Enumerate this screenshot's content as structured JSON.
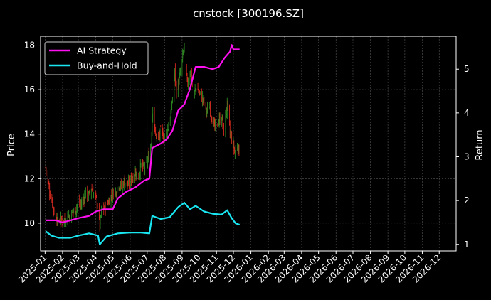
{
  "chart_data": {
    "type": "line",
    "title": "cnstock [300196.SZ]",
    "xlabel": "",
    "ylabel": "Price",
    "y2label": "Return",
    "background": "#000000",
    "grid": true,
    "legend_position": "top-left",
    "x_tick_labels": [
      "2025-01",
      "2025-02",
      "2025-03",
      "2025-04",
      "2025-05",
      "2025-06",
      "2025-07",
      "2025-08",
      "2025-09",
      "2025-10",
      "2025-11",
      "2025-12",
      "2026-01",
      "2026-02",
      "2026-03",
      "2026-04",
      "2026-05",
      "2026-06",
      "2026-07",
      "2026-08",
      "2026-09",
      "2026-10",
      "2026-11",
      "2026-12"
    ],
    "xlim": [
      "2024-12-24",
      "2026-12-31"
    ],
    "ylim": [
      8.75,
      18.4
    ],
    "y_ticks": [
      10,
      12,
      14,
      16,
      18
    ],
    "y2lim": [
      0.85,
      5.75
    ],
    "y2_ticks": [
      1,
      2,
      3,
      4,
      5
    ],
    "candles": {
      "up_color": "#2e8b22",
      "down_color": "#d62a1e",
      "note_series": "daily close, estimated",
      "points": [
        [
          "2025-01-02",
          12.5
        ],
        [
          "2025-01-06",
          11.9
        ],
        [
          "2025-01-09",
          11.4
        ],
        [
          "2025-01-13",
          11.0
        ],
        [
          "2025-01-16",
          10.6
        ],
        [
          "2025-01-21",
          10.3
        ],
        [
          "2025-01-24",
          10.1
        ],
        [
          "2025-02-05",
          10.2
        ],
        [
          "2025-02-10",
          10.4
        ],
        [
          "2025-02-14",
          10.3
        ],
        [
          "2025-02-19",
          10.5
        ],
        [
          "2025-02-24",
          10.6
        ],
        [
          "2025-02-28",
          10.9
        ],
        [
          "2025-03-05",
          10.8
        ],
        [
          "2025-03-10",
          11.1
        ],
        [
          "2025-03-14",
          11.4
        ],
        [
          "2025-03-19",
          11.2
        ],
        [
          "2025-03-24",
          11.6
        ],
        [
          "2025-03-28",
          11.3
        ],
        [
          "2025-04-03",
          11.0
        ],
        [
          "2025-04-08",
          9.9
        ],
        [
          "2025-04-11",
          10.5
        ],
        [
          "2025-04-16",
          10.7
        ],
        [
          "2025-04-22",
          10.9
        ],
        [
          "2025-04-28",
          11.2
        ],
        [
          "2025-05-06",
          11.4
        ],
        [
          "2025-05-12",
          11.8
        ],
        [
          "2025-05-16",
          11.6
        ],
        [
          "2025-05-22",
          11.9
        ],
        [
          "2025-05-28",
          11.7
        ],
        [
          "2025-06-04",
          12.0
        ],
        [
          "2025-06-10",
          12.3
        ],
        [
          "2025-06-16",
          12.1
        ],
        [
          "2025-06-20",
          12.6
        ],
        [
          "2025-06-26",
          12.4
        ],
        [
          "2025-07-02",
          12.8
        ],
        [
          "2025-07-08",
          13.6
        ],
        [
          "2025-07-11",
          15.4
        ],
        [
          "2025-07-15",
          14.0
        ],
        [
          "2025-07-21",
          13.8
        ],
        [
          "2025-07-25",
          14.1
        ],
        [
          "2025-08-01",
          13.9
        ],
        [
          "2025-08-07",
          14.3
        ],
        [
          "2025-08-13",
          15.1
        ],
        [
          "2025-08-19",
          16.8
        ],
        [
          "2025-08-22",
          15.9
        ],
        [
          "2025-08-28",
          16.6
        ],
        [
          "2025-09-03",
          17.6
        ],
        [
          "2025-09-05",
          18.0
        ],
        [
          "2025-09-10",
          16.2
        ],
        [
          "2025-09-16",
          16.9
        ],
        [
          "2025-09-22",
          15.8
        ],
        [
          "2025-09-26",
          16.1
        ],
        [
          "2025-10-09",
          15.5
        ],
        [
          "2025-10-14",
          15.0
        ],
        [
          "2025-10-20",
          15.3
        ],
        [
          "2025-10-24",
          14.7
        ],
        [
          "2025-10-30",
          14.2
        ],
        [
          "2025-11-04",
          14.5
        ],
        [
          "2025-11-10",
          14.8
        ],
        [
          "2025-11-14",
          14.1
        ],
        [
          "2025-11-20",
          15.3
        ],
        [
          "2025-11-25",
          14.0
        ],
        [
          "2025-11-28",
          13.8
        ],
        [
          "2025-12-03",
          13.2
        ],
        [
          "2025-12-08",
          13.5
        ],
        [
          "2025-12-12",
          13.1
        ]
      ]
    },
    "series": [
      {
        "name": "AI Strategy",
        "axis": "right",
        "color": "#ff10f0",
        "points": [
          [
            "2025-01-02",
            1.55
          ],
          [
            "2025-01-20",
            1.55
          ],
          [
            "2025-02-01",
            1.5
          ],
          [
            "2025-02-15",
            1.55
          ],
          [
            "2025-03-01",
            1.6
          ],
          [
            "2025-03-20",
            1.65
          ],
          [
            "2025-04-01",
            1.75
          ],
          [
            "2025-04-15",
            1.8
          ],
          [
            "2025-05-01",
            1.8
          ],
          [
            "2025-05-10",
            2.05
          ],
          [
            "2025-05-25",
            2.2
          ],
          [
            "2025-06-10",
            2.3
          ],
          [
            "2025-06-25",
            2.45
          ],
          [
            "2025-07-05",
            2.5
          ],
          [
            "2025-07-10",
            3.2
          ],
          [
            "2025-07-25",
            3.3
          ],
          [
            "2025-08-05",
            3.4
          ],
          [
            "2025-08-15",
            3.6
          ],
          [
            "2025-08-25",
            4.05
          ],
          [
            "2025-09-05",
            4.2
          ],
          [
            "2025-09-15",
            4.55
          ],
          [
            "2025-09-25",
            5.05
          ],
          [
            "2025-10-10",
            5.05
          ],
          [
            "2025-10-25",
            5.0
          ],
          [
            "2025-11-05",
            5.05
          ],
          [
            "2025-11-15",
            5.25
          ],
          [
            "2025-11-25",
            5.4
          ],
          [
            "2025-11-28",
            5.55
          ],
          [
            "2025-12-01",
            5.45
          ],
          [
            "2025-12-12",
            5.45
          ]
        ]
      },
      {
        "name": "Buy-and-Hold",
        "axis": "right",
        "color": "#19e6f0",
        "points": [
          [
            "2025-01-02",
            1.3
          ],
          [
            "2025-01-12",
            1.2
          ],
          [
            "2025-01-25",
            1.15
          ],
          [
            "2025-02-15",
            1.15
          ],
          [
            "2025-03-01",
            1.2
          ],
          [
            "2025-03-20",
            1.25
          ],
          [
            "2025-04-05",
            1.2
          ],
          [
            "2025-04-08",
            1.0
          ],
          [
            "2025-04-20",
            1.18
          ],
          [
            "2025-05-10",
            1.25
          ],
          [
            "2025-06-01",
            1.27
          ],
          [
            "2025-06-20",
            1.27
          ],
          [
            "2025-07-05",
            1.25
          ],
          [
            "2025-07-10",
            1.65
          ],
          [
            "2025-07-25",
            1.58
          ],
          [
            "2025-08-10",
            1.62
          ],
          [
            "2025-08-25",
            1.85
          ],
          [
            "2025-09-05",
            1.95
          ],
          [
            "2025-09-15",
            1.8
          ],
          [
            "2025-09-25",
            1.88
          ],
          [
            "2025-10-10",
            1.75
          ],
          [
            "2025-10-25",
            1.7
          ],
          [
            "2025-11-10",
            1.68
          ],
          [
            "2025-11-20",
            1.78
          ],
          [
            "2025-11-28",
            1.6
          ],
          [
            "2025-12-05",
            1.48
          ],
          [
            "2025-12-12",
            1.45
          ]
        ]
      }
    ]
  }
}
